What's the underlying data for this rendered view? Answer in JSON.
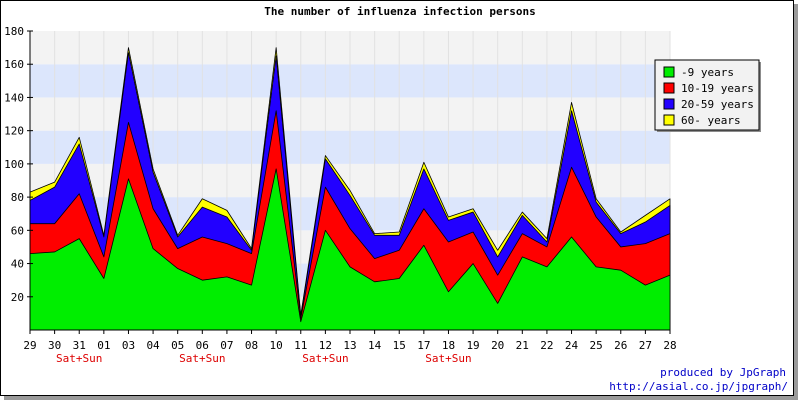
{
  "title": "The number of influenza infection persons",
  "credit": {
    "line1": "produced by JpGraph",
    "line2": "http://asial.co.jp/jpgraph/"
  },
  "chart_data": {
    "type": "area",
    "stacked": true,
    "title": "The number of influenza infection persons",
    "xlabel": "",
    "ylabel": "",
    "categories": [
      "29",
      "30",
      "31",
      "01",
      "03",
      "04",
      "05",
      "06",
      "07",
      "08",
      "10",
      "11",
      "12",
      "13",
      "14",
      "15",
      "17",
      "18",
      "19",
      "20",
      "21",
      "22",
      "24",
      "25",
      "26",
      "27",
      "28"
    ],
    "weekend_labels": [
      {
        "index": 2,
        "text": "Sat+Sun"
      },
      {
        "index": 7,
        "text": "Sat+Sun"
      },
      {
        "index": 12,
        "text": "Sat+Sun"
      },
      {
        "index": 17,
        "text": "Sat+Sun"
      }
    ],
    "series": [
      {
        "name": "-9 years",
        "color": "#00ee00",
        "values": [
          46,
          47,
          55,
          31,
          91,
          49,
          37,
          30,
          32,
          27,
          97,
          5,
          60,
          38,
          29,
          31,
          51,
          23,
          40,
          16,
          44,
          38,
          56,
          38,
          36,
          27,
          33
        ]
      },
      {
        "name": "10-19 years",
        "color": "#ff0000",
        "values": [
          18,
          17,
          27,
          13,
          34,
          24,
          12,
          26,
          20,
          19,
          35,
          2,
          26,
          23,
          14,
          17,
          22,
          30,
          19,
          17,
          14,
          12,
          42,
          30,
          14,
          25,
          25
        ]
      },
      {
        "name": "20-59 years",
        "color": "#2200ff",
        "values": [
          14,
          22,
          30,
          12,
          42,
          22,
          7,
          18,
          16,
          2,
          33,
          1,
          17,
          20,
          14,
          9,
          24,
          13,
          12,
          11,
          11,
          3,
          34,
          9,
          8,
          13,
          17
        ]
      },
      {
        "name": "60- years",
        "color": "#ffff00",
        "values": [
          5,
          3,
          4,
          1,
          3,
          2,
          1,
          5,
          4,
          1,
          5,
          1,
          2,
          3,
          1,
          2,
          4,
          2,
          2,
          4,
          2,
          2,
          5,
          2,
          1,
          4,
          4
        ]
      }
    ],
    "ylim": [
      0,
      180
    ],
    "yticks": [
      20,
      40,
      60,
      80,
      100,
      120,
      140,
      160,
      180
    ],
    "grid": true,
    "legend": "top-right",
    "colors": {
      "plot_band_gray": "#f3f3f3",
      "plot_band_blue": "#dce6fc",
      "weekend_label": "#dd0000",
      "credit_text": "#0000c8"
    }
  }
}
